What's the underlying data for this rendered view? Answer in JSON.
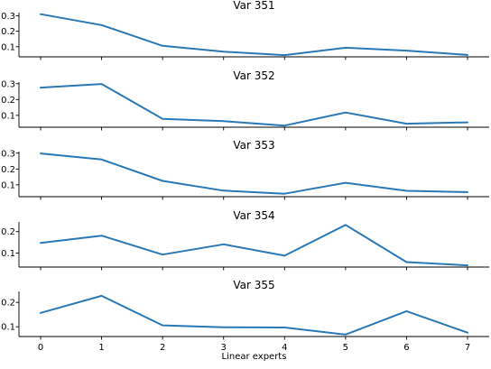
{
  "chart_data": {
    "type": "line",
    "xlabel": "Linear experts",
    "x": [
      0,
      1,
      2,
      3,
      4,
      5,
      6,
      7
    ],
    "x_ticks": [
      "0",
      "1",
      "2",
      "3",
      "4",
      "5",
      "6",
      "7"
    ],
    "line_color": "#2a78b6",
    "grid": false,
    "legend": "none",
    "panels": [
      {
        "title": "Var 351",
        "ylim": [
          0.035,
          0.32
        ],
        "yticks": [
          0.1,
          0.2,
          0.3
        ],
        "ytick_labels": [
          "0.1",
          "0.2",
          "0.3"
        ],
        "values": [
          0.31,
          0.24,
          0.106,
          0.068,
          0.046,
          0.094,
          0.075,
          0.047
        ]
      },
      {
        "title": "Var 352",
        "ylim": [
          0.025,
          0.31
        ],
        "yticks": [
          0.1,
          0.2,
          0.3
        ],
        "ytick_labels": [
          "0.1",
          "0.2",
          "0.3"
        ],
        "values": [
          0.275,
          0.298,
          0.078,
          0.063,
          0.035,
          0.118,
          0.047,
          0.056
        ]
      },
      {
        "title": "Var 353",
        "ylim": [
          0.025,
          0.31
        ],
        "yticks": [
          0.1,
          0.2,
          0.3
        ],
        "ytick_labels": [
          "0.1",
          "0.2",
          "0.3"
        ],
        "values": [
          0.298,
          0.26,
          0.125,
          0.063,
          0.044,
          0.113,
          0.062,
          0.054
        ]
      },
      {
        "title": "Var 354",
        "ylim": [
          0.035,
          0.245
        ],
        "yticks": [
          0.1,
          0.2
        ],
        "ytick_labels": [
          "0.1",
          "0.2"
        ],
        "values": [
          0.147,
          0.181,
          0.093,
          0.141,
          0.088,
          0.231,
          0.058,
          0.043
        ]
      },
      {
        "title": "Var 355",
        "ylim": [
          0.06,
          0.245
        ],
        "yticks": [
          0.1,
          0.2
        ],
        "ytick_labels": [
          "0.1",
          "0.2"
        ],
        "values": [
          0.157,
          0.227,
          0.106,
          0.098,
          0.097,
          0.068,
          0.164,
          0.076
        ]
      }
    ]
  }
}
